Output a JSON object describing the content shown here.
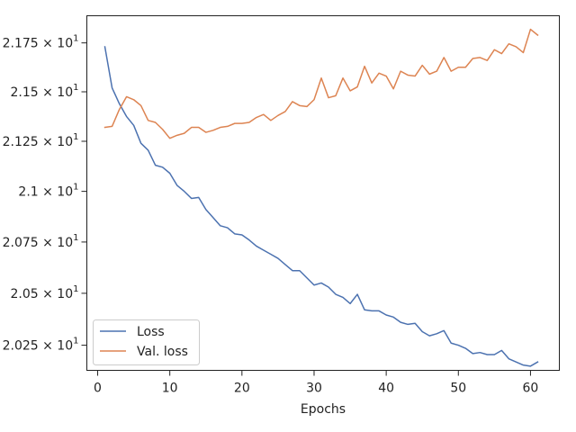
{
  "chart_data": {
    "type": "line",
    "title": "",
    "xlabel": "Epochs",
    "ylabel": "",
    "y_scale": "log",
    "xlim": [
      -1.5,
      64.0
    ],
    "ylim": [
      20.13,
      21.89
    ],
    "xticks": [
      0,
      10,
      20,
      30,
      40,
      50,
      60
    ],
    "xtick_labels": [
      "0",
      "10",
      "20",
      "30",
      "40",
      "50",
      "60"
    ],
    "yticks": [
      20.25,
      20.5,
      20.75,
      21.0,
      21.25,
      21.5,
      21.75
    ],
    "ytick_labels": [
      {
        "mantissa": "2.025",
        "base": "10",
        "exp": "1"
      },
      {
        "mantissa": "2.05",
        "base": "10",
        "exp": "1"
      },
      {
        "mantissa": "2.075",
        "base": "10",
        "exp": "1"
      },
      {
        "mantissa": "2.1",
        "base": "10",
        "exp": "1"
      },
      {
        "mantissa": "2.125",
        "base": "10",
        "exp": "1"
      },
      {
        "mantissa": "2.15",
        "base": "10",
        "exp": "1"
      },
      {
        "mantissa": "2.175",
        "base": "10",
        "exp": "1"
      }
    ],
    "grid": false,
    "legend_position": "lower-left",
    "x": [
      1,
      2,
      3,
      4,
      5,
      6,
      7,
      8,
      9,
      10,
      11,
      12,
      13,
      14,
      15,
      16,
      17,
      18,
      19,
      20,
      21,
      22,
      23,
      24,
      25,
      26,
      27,
      28,
      29,
      30,
      31,
      32,
      33,
      34,
      35,
      36,
      37,
      38,
      39,
      40,
      41,
      42,
      43,
      44,
      45,
      46,
      47,
      48,
      49,
      50,
      51,
      52,
      53,
      54,
      55,
      56,
      57,
      58,
      59,
      60,
      61
    ],
    "series": [
      {
        "name": "Loss",
        "color": "#4c72b0",
        "values": [
          21.73,
          21.52,
          21.44,
          21.375,
          21.33,
          21.24,
          21.205,
          21.13,
          21.12,
          21.09,
          21.03,
          21.0,
          20.965,
          20.97,
          20.91,
          20.87,
          20.83,
          20.82,
          20.79,
          20.785,
          20.76,
          20.73,
          20.71,
          20.69,
          20.67,
          20.64,
          20.61,
          20.61,
          20.575,
          20.54,
          20.55,
          20.53,
          20.495,
          20.48,
          20.45,
          20.495,
          20.42,
          20.415,
          20.415,
          20.395,
          20.385,
          20.36,
          20.35,
          20.355,
          20.315,
          20.295,
          20.305,
          20.32,
          20.26,
          20.25,
          20.235,
          20.21,
          20.215,
          20.205,
          20.205,
          20.225,
          20.185,
          20.17,
          20.155,
          20.15,
          20.17
        ]
      },
      {
        "name": "Val. loss",
        "color": "#dd8452",
        "values": [
          21.32,
          21.325,
          21.41,
          21.475,
          21.46,
          21.43,
          21.355,
          21.345,
          21.31,
          21.265,
          21.28,
          21.29,
          21.32,
          21.32,
          21.295,
          21.305,
          21.32,
          21.325,
          21.34,
          21.34,
          21.345,
          21.37,
          21.385,
          21.355,
          21.38,
          21.4,
          21.45,
          21.43,
          21.425,
          21.46,
          21.57,
          21.47,
          21.48,
          21.57,
          21.505,
          21.525,
          21.63,
          21.545,
          21.595,
          21.58,
          21.515,
          21.605,
          21.585,
          21.58,
          21.635,
          21.59,
          21.605,
          21.675,
          21.605,
          21.625,
          21.625,
          21.67,
          21.675,
          21.66,
          21.715,
          21.695,
          21.745,
          21.73,
          21.7,
          21.82,
          21.79
        ]
      }
    ]
  }
}
